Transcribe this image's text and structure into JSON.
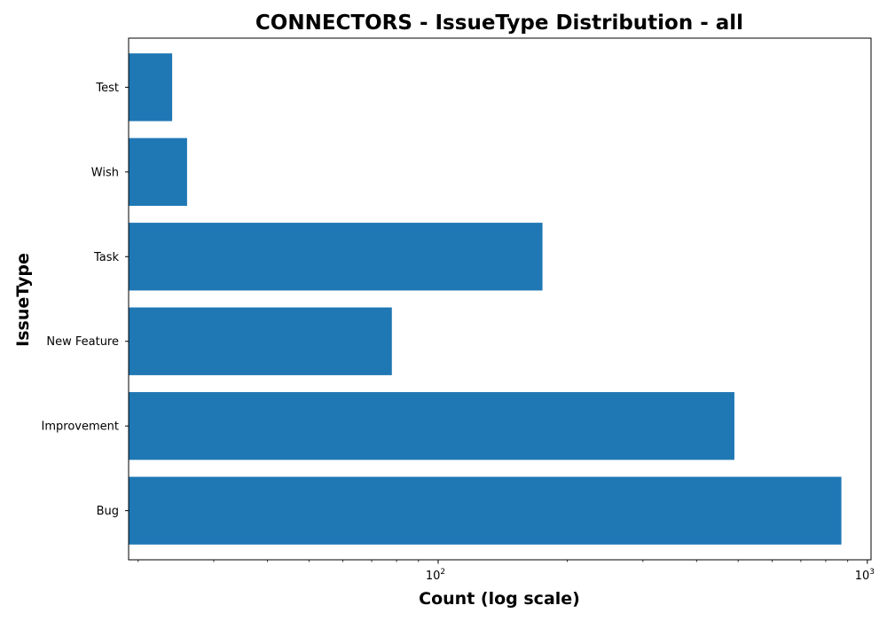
{
  "chart_data": {
    "type": "bar",
    "orientation": "horizontal",
    "title": "CONNECTORS - IssueType Distribution - all",
    "xlabel": "Count (log scale)",
    "ylabel": "IssueType",
    "x_scale": "log",
    "xlim": [
      19,
      1020
    ],
    "x_ticks": [
      {
        "base": "10",
        "exp": "2",
        "value": 100
      },
      {
        "base": "10",
        "exp": "3",
        "value": 1000
      }
    ],
    "x_minor_ticks": [
      20,
      30,
      40,
      50,
      60,
      70,
      80,
      90,
      200,
      300,
      400,
      500,
      600,
      700,
      800,
      900
    ],
    "categories": [
      "Bug",
      "Improvement",
      "New Feature",
      "Task",
      "Wish",
      "Test"
    ],
    "values": [
      870,
      490,
      78,
      175,
      26,
      24
    ],
    "colors": {
      "bar": "#1f77b4"
    },
    "grid": false,
    "legend": "none"
  }
}
